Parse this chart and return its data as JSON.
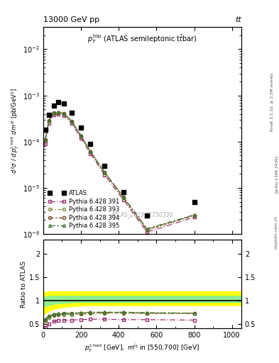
{
  "title_left": "13000 GeV pp",
  "title_right": "tt",
  "watermark": "ATLAS_2019_I1750330",
  "rivet_text": "Rivet 3.1.10, ≥ 3.3M events",
  "arxiv_text": "[arXiv:1306.3436]",
  "mcplots_text": "mcplots.cern.ch",
  "ylabel_ratio": "Ratio to ATLAS",
  "xlim": [
    0,
    1050
  ],
  "ylim_main": [
    1e-06,
    0.03
  ],
  "ylim_ratio": [
    0.4,
    2.3
  ],
  "atlas_x": [
    10,
    30,
    55,
    80,
    110,
    150,
    200,
    250,
    325,
    425,
    550,
    800
  ],
  "atlas_y": [
    0.00018,
    0.00038,
    0.0006,
    0.00072,
    0.00068,
    0.00042,
    0.0002,
    9e-05,
    3e-05,
    8e-06,
    2.5e-06,
    5e-06
  ],
  "pythia391_x": [
    10,
    30,
    55,
    80,
    110,
    150,
    200,
    250,
    325,
    425,
    550,
    800
  ],
  "pythia391_y": [
    9e-05,
    0.00025,
    0.00038,
    0.00039,
    0.00037,
    0.00025,
    0.00012,
    5.5e-05,
    1.9e-05,
    5.5e-06,
    1.1e-06,
    2.3e-06
  ],
  "pythia393_x": [
    10,
    30,
    55,
    80,
    110,
    150,
    200,
    250,
    325,
    425,
    550,
    800
  ],
  "pythia393_y": [
    0.000105,
    0.00028,
    0.00041,
    0.00042,
    0.0004,
    0.00027,
    0.00013,
    6e-05,
    2.1e-05,
    6e-06,
    1.2e-06,
    2.5e-06
  ],
  "pythia394_x": [
    10,
    30,
    55,
    80,
    110,
    150,
    200,
    250,
    325,
    425,
    550,
    800
  ],
  "pythia394_y": [
    0.00011,
    0.000285,
    0.000415,
    0.000425,
    0.000405,
    0.000275,
    0.000132,
    6.1e-05,
    2.15e-05,
    6.2e-06,
    1.25e-06,
    2.55e-06
  ],
  "pythia395_x": [
    10,
    30,
    55,
    80,
    110,
    150,
    200,
    250,
    325,
    425,
    550,
    800
  ],
  "pythia395_y": [
    0.00011,
    0.00029,
    0.00042,
    0.00043,
    0.00041,
    0.00028,
    0.000135,
    6.2e-05,
    2.2e-05,
    6.4e-06,
    1.3e-06,
    2.6e-06
  ],
  "ratio391_x": [
    10,
    30,
    55,
    80,
    110,
    150,
    200,
    250,
    325,
    425,
    550,
    800
  ],
  "ratio391_y": [
    0.42,
    0.5,
    0.55,
    0.57,
    0.58,
    0.58,
    0.59,
    0.6,
    0.6,
    0.59,
    0.59,
    0.58
  ],
  "ratio393_x": [
    10,
    30,
    55,
    80,
    110,
    150,
    200,
    250,
    325,
    425,
    550,
    800
  ],
  "ratio393_y": [
    0.56,
    0.64,
    0.68,
    0.69,
    0.7,
    0.7,
    0.71,
    0.72,
    0.73,
    0.73,
    0.72,
    0.72
  ],
  "ratio394_x": [
    10,
    30,
    55,
    80,
    110,
    150,
    200,
    250,
    325,
    425,
    550,
    800
  ],
  "ratio394_y": [
    0.59,
    0.66,
    0.7,
    0.71,
    0.72,
    0.72,
    0.73,
    0.74,
    0.74,
    0.74,
    0.73,
    0.73
  ],
  "ratio395_x": [
    10,
    30,
    55,
    80,
    110,
    150,
    200,
    250,
    325,
    425,
    550,
    800
  ],
  "ratio395_y": [
    0.6,
    0.67,
    0.71,
    0.72,
    0.73,
    0.73,
    0.74,
    0.75,
    0.75,
    0.75,
    0.74,
    0.73
  ],
  "band_x": [
    0,
    10,
    30,
    55,
    80,
    110,
    150,
    200,
    250,
    325,
    425,
    550,
    800,
    1050
  ],
  "band_green_lo": [
    0.88,
    0.88,
    0.91,
    0.93,
    0.94,
    0.95,
    0.96,
    0.97,
    0.97,
    0.97,
    0.97,
    0.97,
    0.97,
    0.97
  ],
  "band_green_hi": [
    1.08,
    1.08,
    1.1,
    1.1,
    1.1,
    1.1,
    1.1,
    1.1,
    1.1,
    1.1,
    1.1,
    1.1,
    1.1,
    1.1
  ],
  "band_yellow_lo": [
    0.72,
    0.72,
    0.78,
    0.82,
    0.84,
    0.86,
    0.88,
    0.89,
    0.9,
    0.9,
    0.9,
    0.9,
    0.9,
    0.9
  ],
  "band_yellow_hi": [
    1.18,
    1.18,
    1.2,
    1.2,
    1.2,
    1.2,
    1.2,
    1.2,
    1.2,
    1.2,
    1.2,
    1.2,
    1.2,
    1.2
  ],
  "atlas_color": "#000000",
  "py391_color": "#9B3070",
  "py393_color": "#8B8B3A",
  "py394_color": "#7B4020",
  "py395_color": "#3A7B30"
}
